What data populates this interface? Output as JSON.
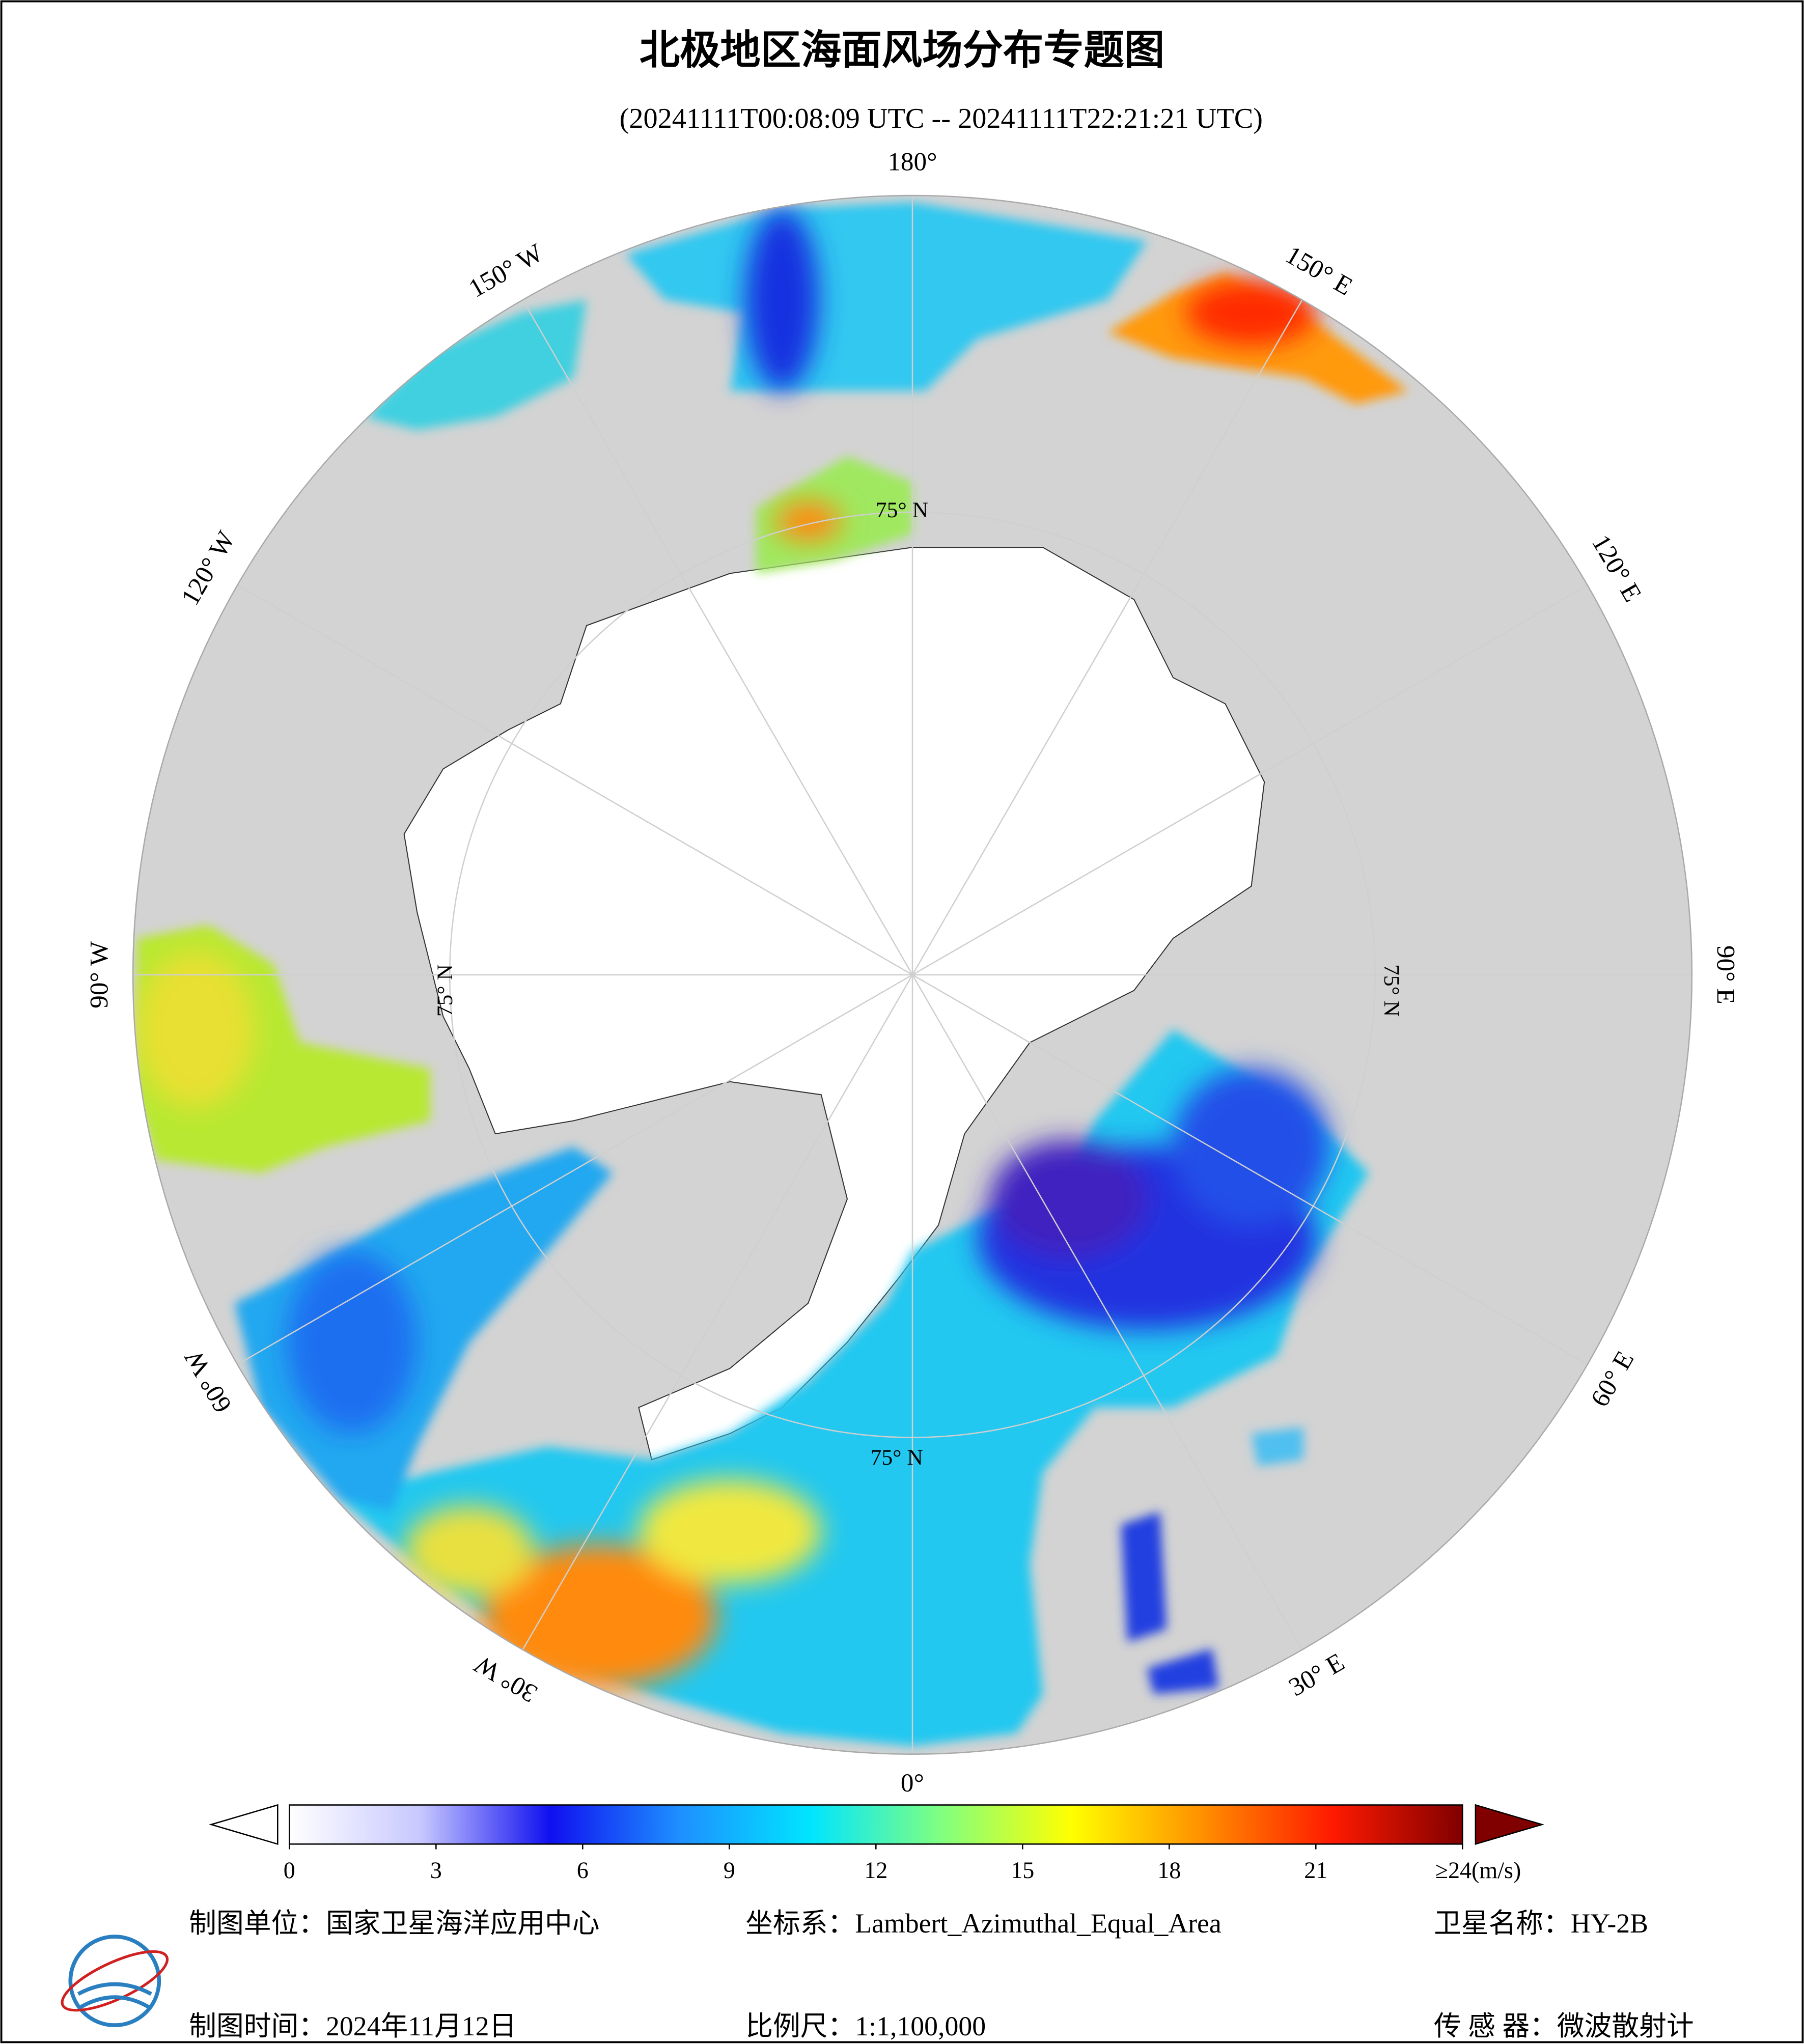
{
  "header": {
    "title": "北极地区海面风场分布专题图",
    "subtitle": "(20241111T00:08:09 UTC -- 20241111T22:21:21 UTC)"
  },
  "map": {
    "longitude_labels": [
      {
        "value": 180,
        "label": "180°"
      },
      {
        "value": 150,
        "label": "150° E"
      },
      {
        "value": 120,
        "label": "120° E"
      },
      {
        "value": 90,
        "label": "90° E"
      },
      {
        "value": 60,
        "label": "60° E"
      },
      {
        "value": 30,
        "label": "30° E"
      },
      {
        "value": 0,
        "label": "0°"
      },
      {
        "value": -30,
        "label": "30° W"
      },
      {
        "value": -60,
        "label": "60° W"
      },
      {
        "value": -90,
        "label": "90° W"
      },
      {
        "value": -120,
        "label": "120° W"
      },
      {
        "value": -150,
        "label": "150° W"
      }
    ],
    "latitude_label": "75° N"
  },
  "colorbar": {
    "range": [
      0,
      24
    ],
    "ticks": [
      0,
      3,
      6,
      9,
      12,
      15,
      18,
      21,
      {
        "value": 24,
        "label": "≥24(m/s)"
      }
    ],
    "colors": [
      "#ffffff",
      "#c8c8ff",
      "#1010f0",
      "#1e90ff",
      "#00e5ff",
      "#80ff80",
      "#ffff00",
      "#ff9000",
      "#ff1a00",
      "#800000"
    ],
    "under_color": "#ffffff",
    "over_color": "#800000"
  },
  "footer": {
    "unit": "制图单位：国家卫星海洋应用中心",
    "projection": "坐标系：Lambert_Azimuthal_Equal_Area",
    "satellite": "卫星名称：HY-2B",
    "date": "制图时间：2024年11月12日",
    "scale": "比例尺：1:1,100,000",
    "sensor": "传 感 器：微波散射计"
  }
}
